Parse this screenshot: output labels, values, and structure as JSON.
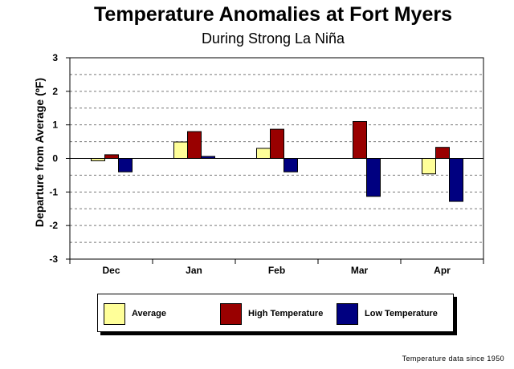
{
  "chart_data": {
    "type": "bar",
    "title": "Temperature Anomalies at Fort Myers",
    "subtitle": "During Strong La Niña",
    "ylabel": "Departure from Average (ºF)",
    "xlabel": "",
    "categories": [
      "Dec",
      "Jan",
      "Feb",
      "Mar",
      "Apr"
    ],
    "series": [
      {
        "name": "Average",
        "color": "#FFFF99",
        "values": [
          -0.07,
          0.49,
          0.3,
          0.0,
          -0.46
        ]
      },
      {
        "name": "High Temperature",
        "color": "#990000",
        "values": [
          0.11,
          0.8,
          0.87,
          1.1,
          0.33
        ]
      },
      {
        "name": "Low Temperature",
        "color": "#000080",
        "values": [
          -0.4,
          0.06,
          -0.4,
          -1.13,
          -1.28
        ]
      }
    ],
    "ylim": [
      -3,
      3
    ],
    "yticks": [
      3,
      2,
      1,
      0,
      -1,
      -2,
      -3
    ],
    "grid": "dashed horizontal lines every 0.5",
    "legend": "bottom"
  },
  "footnote": "Temperature data since 1950"
}
